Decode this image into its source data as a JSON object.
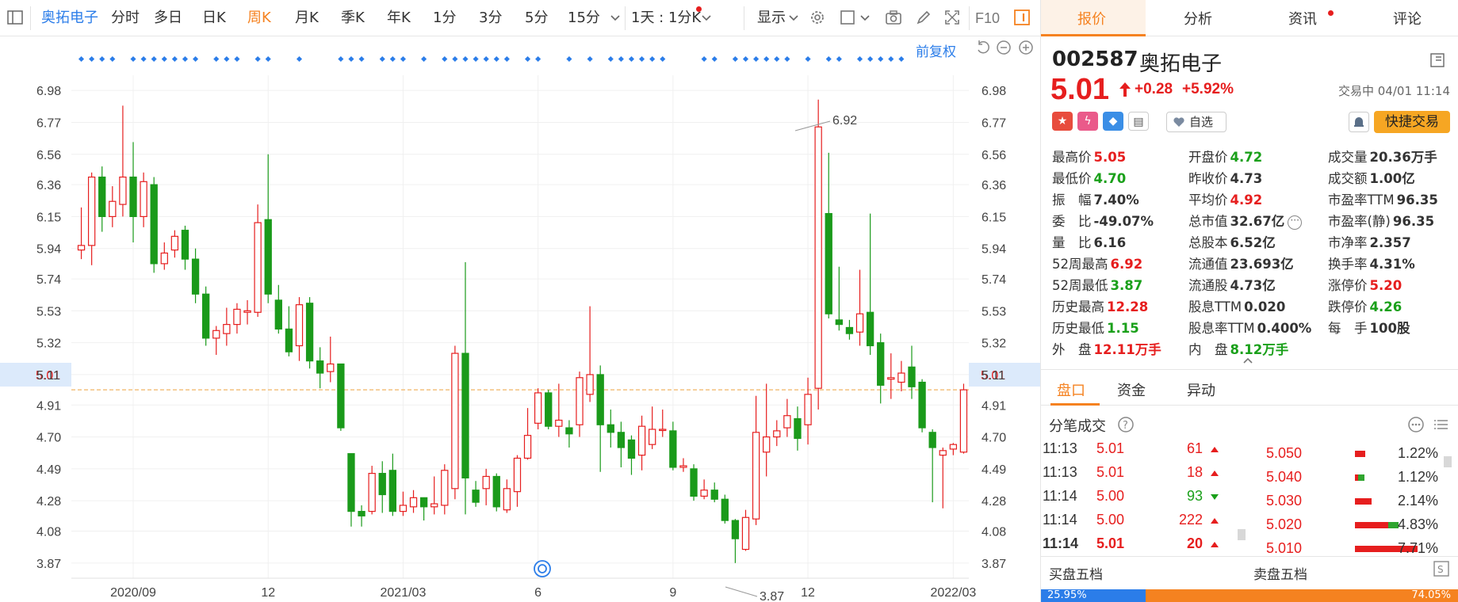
{
  "toolbar": {
    "stock_name": "奥拓电子",
    "periods": [
      "分时",
      "多日",
      "日K",
      "周K",
      "月K",
      "季K",
      "年K",
      "1分",
      "3分",
      "5分",
      "15分"
    ],
    "active_period": "周K",
    "multi_day_label": "1天 : 1分K",
    "display_label": "显示",
    "f10_label": "F10"
  },
  "chart": {
    "restore_label": "前复权",
    "price_line_label": "5.01",
    "max_label": "6.92",
    "min_label": "3.87"
  },
  "chart_data": {
    "type": "candlestick",
    "y_ticks": [
      6.98,
      6.77,
      6.56,
      6.36,
      6.15,
      5.94,
      5.74,
      5.53,
      5.32,
      5.11,
      4.91,
      4.7,
      4.49,
      4.28,
      4.08,
      3.87
    ],
    "ylim": [
      3.77,
      7.08
    ],
    "x_ticks": [
      {
        "label": "2020/09",
        "index": 5
      },
      {
        "label": "12",
        "index": 18
      },
      {
        "label": "2021/03",
        "index": 31
      },
      {
        "label": "6",
        "index": 44
      },
      {
        "label": "9",
        "index": 57
      },
      {
        "label": "12",
        "index": 70
      },
      {
        "label": "2022/03",
        "index": 84
      }
    ],
    "candles": [
      [
        5.93,
        5.96,
        6.21,
        5.87
      ],
      [
        5.96,
        6.41,
        6.44,
        5.83
      ],
      [
        6.41,
        6.15,
        6.48,
        6.05
      ],
      [
        6.15,
        6.25,
        6.35,
        6.08
      ],
      [
        6.23,
        6.41,
        6.88,
        6.15
      ],
      [
        6.41,
        6.15,
        6.64,
        5.98
      ],
      [
        6.15,
        6.38,
        6.44,
        6.08
      ],
      [
        6.36,
        5.84,
        6.41,
        5.78
      ],
      [
        5.84,
        5.91,
        5.98,
        5.8
      ],
      [
        5.93,
        6.02,
        6.06,
        5.88
      ],
      [
        6.06,
        5.87,
        6.09,
        5.8
      ],
      [
        5.87,
        5.64,
        5.94,
        5.58
      ],
      [
        5.64,
        5.35,
        5.69,
        5.3
      ],
      [
        5.35,
        5.4,
        5.43,
        5.24
      ],
      [
        5.38,
        5.44,
        5.55,
        5.3
      ],
      [
        5.44,
        5.54,
        5.58,
        5.38
      ],
      [
        5.52,
        5.53,
        5.6,
        5.44
      ],
      [
        5.52,
        6.11,
        6.23,
        5.49
      ],
      [
        6.13,
        5.64,
        6.56,
        5.58
      ],
      [
        5.6,
        5.41,
        5.7,
        5.38
      ],
      [
        5.41,
        5.26,
        5.56,
        5.23
      ],
      [
        5.3,
        5.57,
        5.62,
        5.2
      ],
      [
        5.58,
        5.2,
        5.62,
        5.15
      ],
      [
        5.2,
        5.12,
        5.29,
        5.02
      ],
      [
        5.13,
        5.18,
        5.36,
        5.06
      ],
      [
        5.18,
        4.76,
        5.18,
        4.74
      ],
      [
        4.59,
        4.21,
        4.59,
        4.11
      ],
      [
        4.21,
        4.18,
        4.25,
        4.11
      ],
      [
        4.21,
        4.46,
        4.51,
        4.19
      ],
      [
        4.46,
        4.32,
        4.54,
        4.2
      ],
      [
        4.48,
        4.21,
        4.59,
        4.18
      ],
      [
        4.21,
        4.25,
        4.34,
        4.18
      ],
      [
        4.24,
        4.3,
        4.35,
        4.2
      ],
      [
        4.3,
        4.24,
        4.3,
        4.15
      ],
      [
        4.24,
        4.26,
        4.44,
        4.19
      ],
      [
        4.25,
        4.48,
        4.52,
        4.19
      ],
      [
        4.36,
        5.25,
        5.3,
        4.29
      ],
      [
        5.25,
        4.43,
        5.85,
        4.19
      ],
      [
        4.35,
        4.27,
        4.41,
        4.24
      ],
      [
        4.36,
        4.44,
        4.49,
        4.25
      ],
      [
        4.44,
        4.24,
        4.46,
        4.21
      ],
      [
        4.22,
        4.36,
        4.42,
        4.2
      ],
      [
        4.34,
        4.56,
        4.58,
        4.24
      ],
      [
        4.56,
        4.71,
        4.89,
        4.55
      ],
      [
        4.79,
        4.99,
        5.02,
        4.75
      ],
      [
        4.99,
        4.77,
        5.01,
        4.75
      ],
      [
        4.77,
        4.81,
        5.05,
        4.7
      ],
      [
        4.76,
        4.72,
        4.81,
        4.63
      ],
      [
        4.78,
        5.09,
        5.13,
        4.7
      ],
      [
        4.98,
        5.11,
        5.56,
        4.93
      ],
      [
        5.11,
        4.78,
        5.17,
        4.47
      ],
      [
        4.78,
        4.73,
        4.88,
        4.63
      ],
      [
        4.73,
        4.63,
        4.8,
        4.5
      ],
      [
        4.68,
        4.56,
        4.71,
        4.45
      ],
      [
        4.58,
        4.77,
        4.84,
        4.48
      ],
      [
        4.65,
        4.75,
        4.9,
        4.62
      ],
      [
        4.75,
        4.75,
        4.88,
        4.7
      ],
      [
        4.74,
        4.5,
        4.8,
        4.48
      ],
      [
        4.5,
        4.51,
        4.56,
        4.47
      ],
      [
        4.49,
        4.31,
        4.52,
        4.28
      ],
      [
        4.31,
        4.35,
        4.42,
        4.29
      ],
      [
        4.35,
        4.29,
        4.4,
        4.27
      ],
      [
        4.29,
        4.15,
        4.32,
        4.13
      ],
      [
        4.15,
        4.03,
        4.16,
        3.87
      ],
      [
        3.96,
        4.17,
        4.22,
        3.95
      ],
      [
        4.16,
        4.73,
        4.97,
        4.12
      ],
      [
        4.6,
        4.7,
        5.05,
        4.44
      ],
      [
        4.7,
        4.74,
        4.81,
        4.64
      ],
      [
        4.76,
        4.84,
        4.95,
        4.7
      ],
      [
        4.82,
        4.69,
        4.9,
        4.61
      ],
      [
        4.78,
        4.98,
        5.09,
        4.65
      ],
      [
        5.02,
        6.74,
        6.92,
        4.88
      ],
      [
        6.17,
        5.51,
        6.57,
        5.48
      ],
      [
        5.47,
        5.44,
        5.82,
        5.4
      ],
      [
        5.42,
        5.38,
        5.47,
        5.34
      ],
      [
        5.39,
        5.51,
        5.8,
        5.3
      ],
      [
        5.52,
        5.3,
        6.17,
        5.24
      ],
      [
        5.32,
        5.04,
        5.38,
        4.92
      ],
      [
        5.08,
        5.09,
        5.25,
        4.95
      ],
      [
        5.06,
        5.12,
        5.2,
        5.0
      ],
      [
        5.16,
        5.03,
        5.3,
        4.95
      ],
      [
        5.06,
        4.76,
        5.08,
        4.73
      ],
      [
        4.73,
        4.63,
        4.75,
        4.27
      ],
      [
        4.58,
        4.61,
        4.63,
        4.23
      ],
      [
        4.62,
        4.65,
        4.66,
        4.58
      ],
      [
        4.6,
        5.01,
        5.05,
        4.59
      ]
    ]
  },
  "panel": {
    "tabs": [
      "报价",
      "分析",
      "资讯",
      "评论"
    ],
    "code": "002587",
    "name": "奥拓电子",
    "price": "5.01",
    "change": "+0.28",
    "change_pct": "+5.92%",
    "status": "交易中 04/01 11:14",
    "fav_label": "自选",
    "quick_trade": "快捷交易",
    "stats": [
      {
        "k": "最高价",
        "v": "5.05",
        "c": "red"
      },
      {
        "k": "开盘价",
        "v": "4.72",
        "c": "green"
      },
      {
        "k": "成交量",
        "v": "20.36万手",
        "c": "dark"
      },
      {
        "k": "最低价",
        "v": "4.70",
        "c": "green"
      },
      {
        "k": "昨收价",
        "v": "4.73",
        "c": "dark"
      },
      {
        "k": "成交额",
        "v": "1.00亿",
        "c": "dark"
      },
      {
        "k": "振　幅",
        "v": "7.40%",
        "c": "dark"
      },
      {
        "k": "平均价",
        "v": "4.92",
        "c": "red"
      },
      {
        "k": "市盈率TTM",
        "v": "96.35",
        "c": "dark"
      },
      {
        "k": "委　比",
        "v": "-49.07%",
        "c": "dark"
      },
      {
        "k": "总市值",
        "v": "32.67亿",
        "c": "dark"
      },
      {
        "k": "市盈率(静)",
        "v": "96.35",
        "c": "dark"
      },
      {
        "k": "量　比",
        "v": "6.16",
        "c": "dark"
      },
      {
        "k": "总股本",
        "v": "6.52亿",
        "c": "dark"
      },
      {
        "k": "市净率",
        "v": "2.357",
        "c": "dark"
      },
      {
        "k": "52周最高",
        "v": "6.92",
        "c": "red"
      },
      {
        "k": "流通值",
        "v": "23.693亿",
        "c": "dark"
      },
      {
        "k": "换手率",
        "v": "4.31%",
        "c": "dark"
      },
      {
        "k": "52周最低",
        "v": "3.87",
        "c": "green"
      },
      {
        "k": "流通股",
        "v": "4.73亿",
        "c": "dark"
      },
      {
        "k": "涨停价",
        "v": "5.20",
        "c": "red"
      },
      {
        "k": "历史最高",
        "v": "12.28",
        "c": "red"
      },
      {
        "k": "股息TTM",
        "v": "0.020",
        "c": "dark"
      },
      {
        "k": "跌停价",
        "v": "4.26",
        "c": "green"
      },
      {
        "k": "历史最低",
        "v": "1.15",
        "c": "green"
      },
      {
        "k": "股息率TTM",
        "v": "0.400%",
        "c": "dark"
      },
      {
        "k": "每　手",
        "v": "100股",
        "c": "dark"
      },
      {
        "k": "外　盘",
        "v": "12.11万手",
        "c": "red"
      },
      {
        "k": "内　盘",
        "v": "8.12万手",
        "c": "green"
      }
    ],
    "subtabs": [
      "盘口",
      "资金",
      "异动"
    ],
    "ticks_title": "分笔成交",
    "ticks": [
      {
        "time": "11:13",
        "price": "5.01",
        "vol": "61",
        "dir": "up"
      },
      {
        "time": "11:13",
        "price": "5.01",
        "vol": "18",
        "dir": "up"
      },
      {
        "time": "11:14",
        "price": "5.00",
        "vol": "93",
        "dir": "down"
      },
      {
        "time": "11:14",
        "price": "5.00",
        "vol": "222",
        "dir": "up"
      },
      {
        "time": "11:14",
        "price": "5.01",
        "vol": "20",
        "dir": "up"
      }
    ],
    "depth": [
      {
        "price": "5.050",
        "pct": "1.22%",
        "red": 0.12,
        "green": 0.0
      },
      {
        "price": "5.040",
        "pct": "1.12%",
        "red": 0.04,
        "green": 0.07
      },
      {
        "price": "5.030",
        "pct": "2.14%",
        "red": 0.19,
        "green": 0.0
      },
      {
        "price": "5.020",
        "pct": "4.83%",
        "red": 0.38,
        "green": 0.12
      },
      {
        "price": "5.010",
        "pct": "7.71%",
        "red": 0.72,
        "green": 0.0
      }
    ],
    "bid_label": "买盘五档",
    "ask_label": "卖盘五档",
    "bid_ratio": "25.95%",
    "ask_ratio": "74.05%"
  }
}
